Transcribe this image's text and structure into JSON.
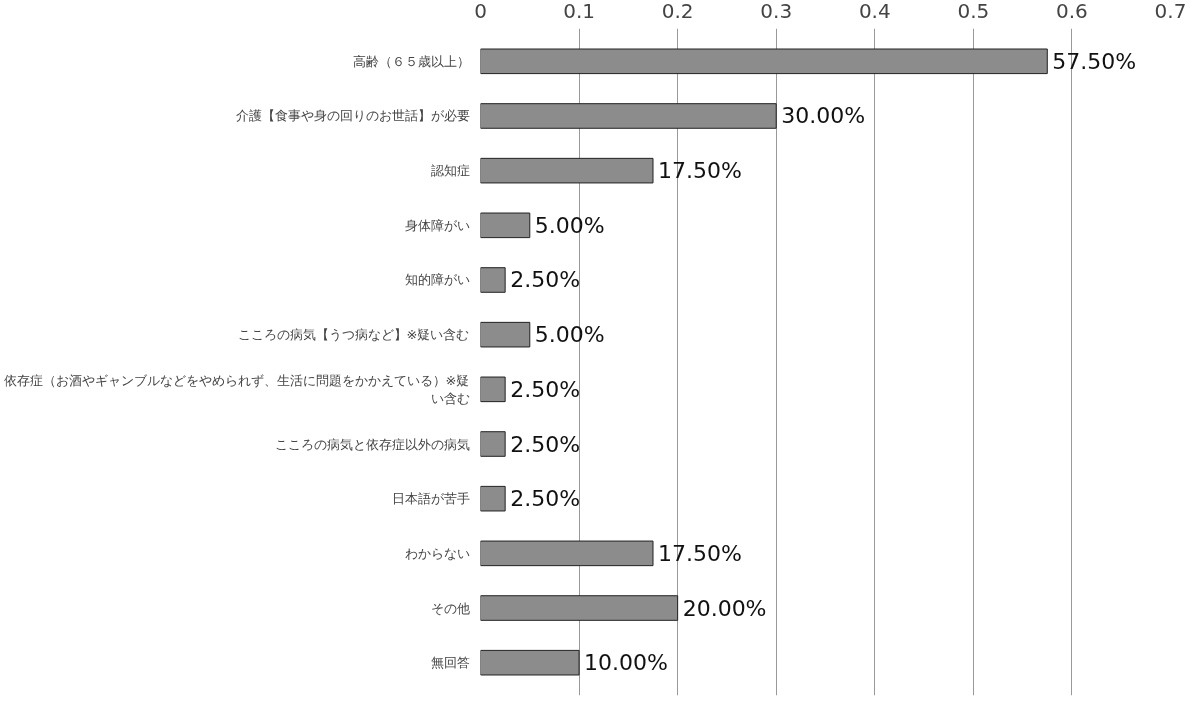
{
  "chart_data": {
    "type": "bar",
    "orientation": "horizontal",
    "categories": [
      "高齢（６５歳以上）",
      "介護【食事や身の回りのお世話】が必要",
      "認知症",
      "身体障がい",
      "知的障がい",
      "こころの病気【うつ病など】※疑い含む",
      "依存症（お酒やギャンブルなどをやめられず、生活に問題をかかえている）※疑い含む",
      "こころの病気と依存症以外の病気",
      "日本語が苦手",
      "わからない",
      "その他",
      "無回答"
    ],
    "values": [
      0.575,
      0.3,
      0.175,
      0.05,
      0.025,
      0.05,
      0.025,
      0.025,
      0.025,
      0.175,
      0.2,
      0.1
    ],
    "value_labels": [
      "57.50%",
      "30.00%",
      "17.50%",
      "5.00%",
      "2.50%",
      "5.00%",
      "2.50%",
      "2.50%",
      "2.50%",
      "17.50%",
      "20.00%",
      "10.00%"
    ],
    "color": "#8c8c8c",
    "xlim": [
      0,
      0.7
    ],
    "xticks": [
      {
        "value": 0,
        "label": "0"
      },
      0.1,
      0.2,
      0.3,
      0.4,
      0.5,
      0.6,
      0.7
    ],
    "grid": "x"
  }
}
